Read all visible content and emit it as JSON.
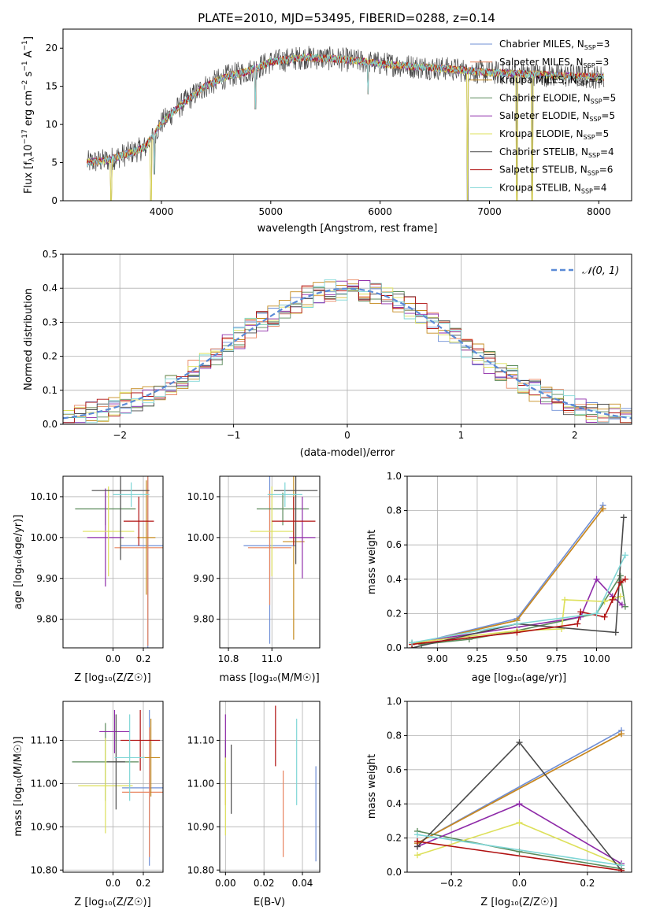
{
  "colors": {
    "chabrier_miles": "#6f8fd6",
    "salpeter_miles": "#e8845f",
    "kroupa_miles": "#c58a1f",
    "chabrier_elodie": "#5a8a5a",
    "salpeter_elodie": "#8e2aa8",
    "kroupa_elodie": "#dde05a",
    "chabrier_stelib": "#4a4a4a",
    "salpeter_stelib": "#b01010",
    "kroupa_stelib": "#7fd6d6",
    "normal_curve": "#5a8ad6",
    "grid": "#b0b0b0"
  },
  "chart_data": [
    {
      "id": "spectrum",
      "type": "line",
      "title": "PLATE=2010, MJD=53495, FIBERID=0288, z=0.14",
      "xlabel": "wavelength [Angstrom, rest frame]",
      "ylabel_parts": [
        "Flux [f",
        "λ",
        "10",
        "−17",
        " erg cm",
        "−2",
        " s",
        "−1",
        " A",
        "−1",
        "]"
      ],
      "xlim": [
        3100,
        8300
      ],
      "ylim": [
        0,
        22.5
      ],
      "xticks": [
        4000,
        5000,
        6000,
        7000,
        8000
      ],
      "yticks": [
        0,
        5,
        10,
        15,
        20
      ],
      "grid": false,
      "legend_position": "top-right",
      "legend": [
        {
          "text": "Chabrier MILES, N",
          "sub": "SSP",
          "tail": "=3",
          "color_key": "chabrier_miles"
        },
        {
          "text": "Salpeter MILES, N",
          "sub": "SSP",
          "tail": "=3",
          "color_key": "salpeter_miles"
        },
        {
          "text": "Kroupa MILES, N",
          "sub": "SSP",
          "tail": "=3",
          "color_key": "kroupa_miles"
        },
        {
          "text": "Chabrier ELODIE, N",
          "sub": "SSP",
          "tail": "=5",
          "color_key": "chabrier_elodie"
        },
        {
          "text": "Salpeter ELODIE, N",
          "sub": "SSP",
          "tail": "=5",
          "color_key": "salpeter_elodie"
        },
        {
          "text": "Kroupa ELODIE, N",
          "sub": "SSP",
          "tail": "=5",
          "color_key": "kroupa_elodie"
        },
        {
          "text": "Chabrier STELIB, N",
          "sub": "SSP",
          "tail": "=4",
          "color_key": "chabrier_stelib"
        },
        {
          "text": "Salpeter STELIB, N",
          "sub": "SSP",
          "tail": "=6",
          "color_key": "salpeter_stelib"
        },
        {
          "text": "Kroupa STELIB, N",
          "sub": "SSP",
          "tail": "=4",
          "color_key": "kroupa_stelib"
        }
      ],
      "continuum": [
        [
          3320,
          5.0
        ],
        [
          3500,
          5.3
        ],
        [
          3700,
          6.2
        ],
        [
          3850,
          7.0
        ],
        [
          4000,
          10.2
        ],
        [
          4200,
          12.8
        ],
        [
          4400,
          15.0
        ],
        [
          4600,
          16.3
        ],
        [
          4800,
          17.0
        ],
        [
          5000,
          18.2
        ],
        [
          5300,
          18.8
        ],
        [
          5600,
          18.6
        ],
        [
          6000,
          18.0
        ],
        [
          6300,
          17.6
        ],
        [
          6600,
          17.3
        ],
        [
          7000,
          16.8
        ],
        [
          7500,
          16.5
        ],
        [
          8050,
          16.2
        ]
      ],
      "dips": [
        [
          3540,
          0
        ],
        [
          3905,
          0
        ],
        [
          3935,
          3.5
        ],
        [
          4860,
          12
        ],
        [
          5890,
          14
        ],
        [
          6800,
          0
        ],
        [
          7250,
          0
        ],
        [
          7390,
          0
        ]
      ]
    },
    {
      "id": "residuals",
      "type": "step",
      "xlabel": "(data-model)/error",
      "ylabel": "Normed distribution",
      "xlim": [
        -2.5,
        2.5
      ],
      "ylim": [
        0,
        0.5
      ],
      "xticks": [
        -2,
        -1,
        0,
        1,
        2
      ],
      "yticks": [
        0.0,
        0.1,
        0.2,
        0.3,
        0.4,
        0.5
      ],
      "grid": true,
      "legend_position": "top-right",
      "legend": [
        {
          "text": "𝒩(0, 1)",
          "style": "dashed"
        }
      ],
      "bin_width": 0.1
    },
    {
      "id": "age_vs_z",
      "type": "scatter",
      "xlabel": "Z [log₁₀(Z/Z☉)]",
      "ylabel": "age  [log₁₀(age/yr)]",
      "xlim": [
        -0.33,
        0.33
      ],
      "ylim": [
        9.73,
        10.15
      ],
      "xticks": [
        0.0,
        0.2
      ],
      "yticks": [
        9.8,
        9.9,
        10.0,
        10.1
      ],
      "grid": true,
      "series": [
        {
          "color_key": "chabrier_miles",
          "x": 0.23,
          "y": 9.98,
          "xerr": 0.18,
          "yerr": 0.26
        },
        {
          "color_key": "salpeter_miles",
          "x": 0.23,
          "y": 9.975,
          "xerr": 0.22,
          "yerr": 0.24
        },
        {
          "color_key": "kroupa_miles",
          "x": 0.22,
          "y": 10.0,
          "xerr": 0.06,
          "yerr": 0.14
        },
        {
          "color_key": "chabrier_elodie",
          "x": -0.05,
          "y": 10.07,
          "xerr": 0.2,
          "yerr": 0.04
        },
        {
          "color_key": "salpeter_elodie",
          "x": -0.05,
          "y": 10.0,
          "xerr": 0.12,
          "yerr": 0.12
        },
        {
          "color_key": "kroupa_elodie",
          "x": -0.03,
          "y": 10.015,
          "xerr": 0.17,
          "yerr": 0.11
        },
        {
          "color_key": "chabrier_stelib",
          "x": 0.05,
          "y": 10.115,
          "xerr": 0.19,
          "yerr": 0.17
        },
        {
          "color_key": "salpeter_stelib",
          "x": 0.17,
          "y": 10.04,
          "xerr": 0.1,
          "yerr": 0.06
        },
        {
          "color_key": "kroupa_stelib",
          "x": 0.12,
          "y": 10.105,
          "xerr": 0.12,
          "yerr": 0.03
        }
      ]
    },
    {
      "id": "age_vs_mass",
      "type": "scatter",
      "xlabel": "mass [log₁₀(M/M☉)]",
      "xlim": [
        10.76,
        11.22
      ],
      "ylim": [
        9.73,
        10.15
      ],
      "xticks": [
        10.8,
        11.0
      ],
      "yticks": [
        9.8,
        9.9,
        10.0,
        10.1
      ],
      "grid": true,
      "series": [
        {
          "color_key": "chabrier_miles",
          "x": 10.99,
          "y": 9.98,
          "xerr": 0.12,
          "yerr": 0.24
        },
        {
          "color_key": "salpeter_miles",
          "x": 10.99,
          "y": 9.975,
          "xerr": 0.1,
          "yerr": 0.14
        },
        {
          "color_key": "kroupa_miles",
          "x": 11.1,
          "y": 9.99,
          "xerr": 0.05,
          "yerr": 0.24
        },
        {
          "color_key": "chabrier_elodie",
          "x": 11.05,
          "y": 10.07,
          "xerr": 0.12,
          "yerr": 0.04
        },
        {
          "color_key": "salpeter_elodie",
          "x": 11.14,
          "y": 10.0,
          "xerr": 0.06,
          "yerr": 0.1
        },
        {
          "color_key": "kroupa_elodie",
          "x": 11.0,
          "y": 10.015,
          "xerr": 0.1,
          "yerr": 0.11
        },
        {
          "color_key": "chabrier_stelib",
          "x": 11.11,
          "y": 10.115,
          "xerr": 0.1,
          "yerr": 0.18
        },
        {
          "color_key": "salpeter_stelib",
          "x": 11.1,
          "y": 10.04,
          "xerr": 0.1,
          "yerr": 0.06
        },
        {
          "color_key": "kroupa_stelib",
          "x": 11.06,
          "y": 10.105,
          "xerr": 0.08,
          "yerr": 0.03
        }
      ]
    },
    {
      "id": "weight_vs_age",
      "type": "line",
      "xlabel": "age  [log₁₀(age/yr)]",
      "ylabel": "mass weight",
      "xlim": [
        8.81,
        10.22
      ],
      "ylim": [
        0,
        1
      ],
      "xticks": [
        9.0,
        9.25,
        9.5,
        9.75,
        10.0
      ],
      "yticks": [
        0.0,
        0.2,
        0.4,
        0.6,
        0.8,
        1.0
      ],
      "grid": true,
      "series": [
        {
          "color_key": "chabrier_miles",
          "x": [
            8.84,
            9.5,
            10.04
          ],
          "y": [
            0.02,
            0.17,
            0.83
          ]
        },
        {
          "color_key": "salpeter_miles",
          "x": [
            8.84,
            9.5,
            10.04
          ],
          "y": [
            0.02,
            0.16,
            0.81
          ]
        },
        {
          "color_key": "kroupa_miles",
          "x": [
            8.84,
            9.5,
            10.04
          ],
          "y": [
            0.02,
            0.16,
            0.81
          ]
        },
        {
          "color_key": "chabrier_elodie",
          "x": [
            8.9,
            9.2,
            9.5,
            10.0,
            10.15,
            10.18
          ],
          "y": [
            0.02,
            0.05,
            0.1,
            0.2,
            0.42,
            0.24
          ]
        },
        {
          "color_key": "salpeter_elodie",
          "x": [
            8.84,
            9.5,
            9.9,
            10.0,
            10.1,
            10.16
          ],
          "y": [
            0.03,
            0.12,
            0.18,
            0.4,
            0.3,
            0.25
          ]
        },
        {
          "color_key": "kroupa_elodie",
          "x": [
            8.84,
            9.5,
            9.78,
            9.8,
            10.05,
            10.15
          ],
          "y": [
            0.03,
            0.1,
            0.11,
            0.28,
            0.27,
            0.3
          ]
        },
        {
          "color_key": "chabrier_stelib",
          "x": [
            8.84,
            9.5,
            10.12,
            10.17
          ],
          "y": [
            0.0,
            0.14,
            0.09,
            0.76
          ]
        },
        {
          "color_key": "salpeter_stelib",
          "x": [
            8.84,
            9.5,
            9.88,
            9.9,
            10.05,
            10.1,
            10.15,
            10.18
          ],
          "y": [
            0.02,
            0.09,
            0.14,
            0.21,
            0.18,
            0.28,
            0.38,
            0.4
          ]
        },
        {
          "color_key": "kroupa_stelib",
          "x": [
            8.84,
            9.5,
            10.0,
            10.18
          ],
          "y": [
            0.03,
            0.14,
            0.2,
            0.54
          ]
        }
      ]
    },
    {
      "id": "mass_vs_z",
      "type": "scatter",
      "xlabel": "Z [log₁₀(Z/Z☉)]",
      "ylabel": "mass [log₁₀(M/M☉)]",
      "xlim": [
        -0.33,
        0.33
      ],
      "ylim": [
        10.795,
        11.19
      ],
      "xticks": [
        0.0,
        0.2
      ],
      "yticks": [
        10.8,
        10.9,
        11.0,
        11.1
      ],
      "grid": true,
      "series": [
        {
          "color_key": "chabrier_miles",
          "x": 0.24,
          "y": 10.99,
          "xerr": 0.18,
          "yerr": 0.18
        },
        {
          "color_key": "salpeter_miles",
          "x": 0.24,
          "y": 10.98,
          "xerr": 0.18,
          "yerr": 0.15
        },
        {
          "color_key": "kroupa_miles",
          "x": 0.25,
          "y": 11.06,
          "xerr": 0.06,
          "yerr": 0.09
        },
        {
          "color_key": "chabrier_elodie",
          "x": -0.05,
          "y": 11.05,
          "xerr": 0.22,
          "yerr": 0.09
        },
        {
          "color_key": "salpeter_elodie",
          "x": 0.01,
          "y": 11.12,
          "xerr": 0.1,
          "yerr": 0.05
        },
        {
          "color_key": "kroupa_elodie",
          "x": -0.05,
          "y": 10.995,
          "xerr": 0.18,
          "yerr": 0.11
        },
        {
          "color_key": "chabrier_stelib",
          "x": 0.02,
          "y": 11.05,
          "xerr": 0.06,
          "yerr": 0.11
        },
        {
          "color_key": "salpeter_stelib",
          "x": 0.18,
          "y": 11.1,
          "xerr": 0.13,
          "yerr": 0.07
        },
        {
          "color_key": "kroupa_stelib",
          "x": 0.11,
          "y": 11.06,
          "xerr": 0.1,
          "yerr": 0.1
        }
      ]
    },
    {
      "id": "mass_vs_ebv",
      "type": "scatter",
      "xlabel": "E(B-V)",
      "xlim": [
        -0.003,
        0.049
      ],
      "ylim": [
        10.795,
        11.19
      ],
      "xticks": [
        0.0,
        0.02,
        0.04
      ],
      "yticks": [
        10.8,
        10.9,
        11.0,
        11.1
      ],
      "grid": true,
      "series": [
        {
          "color_key": "chabrier_miles",
          "x": 0.047,
          "y": 10.93,
          "yerr": 0.11
        },
        {
          "color_key": "salpeter_miles",
          "x": 0.03,
          "y": 10.93,
          "yerr": 0.1
        },
        {
          "color_key": "kroupa_miles",
          "x": 0.0,
          "y": 11.0,
          "yerr": 0.05
        },
        {
          "color_key": "chabrier_elodie",
          "x": 0.0,
          "y": 11.05,
          "yerr": 0.05
        },
        {
          "color_key": "salpeter_elodie",
          "x": 0.0,
          "y": 11.11,
          "yerr": 0.05
        },
        {
          "color_key": "kroupa_elodie",
          "x": 0.0,
          "y": 10.97,
          "yerr": 0.09
        },
        {
          "color_key": "chabrier_stelib",
          "x": 0.003,
          "y": 11.01,
          "yerr": 0.08
        },
        {
          "color_key": "salpeter_stelib",
          "x": 0.026,
          "y": 11.11,
          "yerr": 0.07
        },
        {
          "color_key": "kroupa_stelib",
          "x": 0.037,
          "y": 11.05,
          "yerr": 0.1
        }
      ]
    },
    {
      "id": "weight_vs_z",
      "type": "line",
      "xlabel": "Z [log₁₀(Z/Z☉)]",
      "ylabel": "mass weight",
      "xlim": [
        -0.33,
        0.33
      ],
      "ylim": [
        0,
        1
      ],
      "xticks": [
        -0.2,
        0.0,
        0.2
      ],
      "yticks": [
        0.0,
        0.2,
        0.4,
        0.6,
        0.8,
        1.0
      ],
      "grid": true,
      "series": [
        {
          "color_key": "chabrier_miles",
          "x": [
            -0.3,
            0.3
          ],
          "y": [
            0.17,
            0.83
          ]
        },
        {
          "color_key": "salpeter_miles",
          "x": [
            -0.3,
            0.3
          ],
          "y": [
            0.17,
            0.81
          ]
        },
        {
          "color_key": "kroupa_miles",
          "x": [
            -0.3,
            0.3
          ],
          "y": [
            0.17,
            0.81
          ]
        },
        {
          "color_key": "chabrier_elodie",
          "x": [
            -0.3,
            0.0,
            0.3
          ],
          "y": [
            0.24,
            0.12,
            0.02
          ]
        },
        {
          "color_key": "salpeter_elodie",
          "x": [
            -0.3,
            0.0,
            0.3
          ],
          "y": [
            0.15,
            0.4,
            0.05
          ]
        },
        {
          "color_key": "kroupa_elodie",
          "x": [
            -0.3,
            0.0,
            0.3
          ],
          "y": [
            0.1,
            0.29,
            0.04
          ]
        },
        {
          "color_key": "chabrier_stelib",
          "x": [
            -0.3,
            0.0,
            0.3
          ],
          "y": [
            0.15,
            0.76,
            0.01
          ]
        },
        {
          "color_key": "salpeter_stelib",
          "x": [
            -0.3,
            0.3
          ],
          "y": [
            0.18,
            0.01
          ]
        },
        {
          "color_key": "kroupa_stelib",
          "x": [
            -0.3,
            0.3
          ],
          "y": [
            0.22,
            0.04
          ]
        }
      ]
    }
  ]
}
